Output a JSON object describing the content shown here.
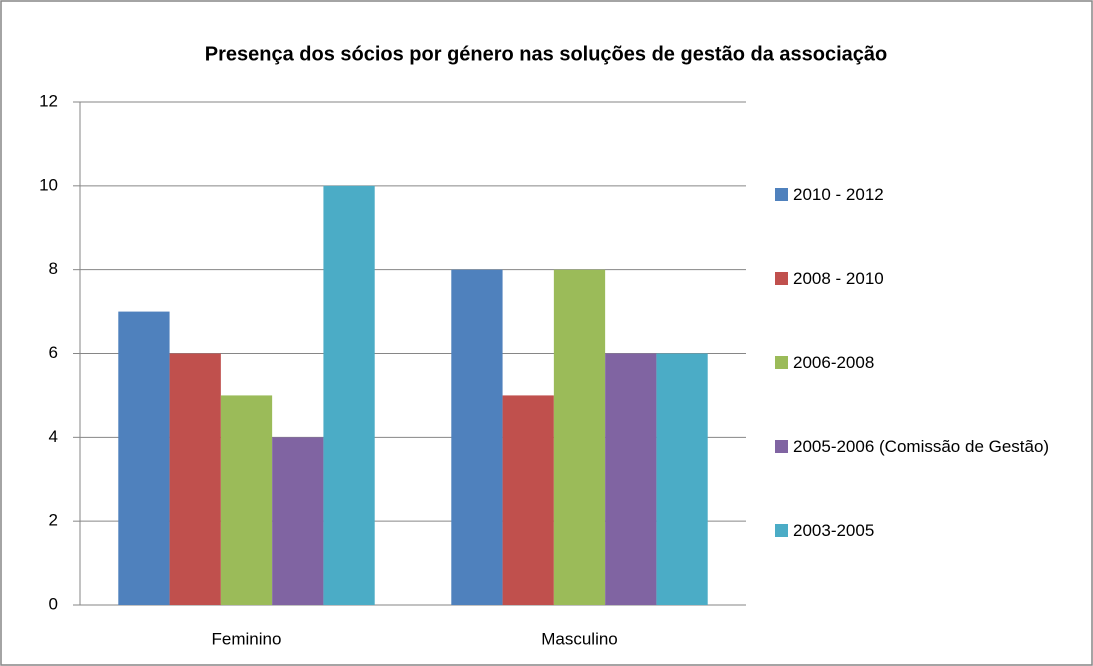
{
  "chart_data": {
    "type": "bar",
    "title": "Presença dos sócios por género nas soluções de gestão da associação",
    "categories": [
      "Feminino",
      "Masculino"
    ],
    "series": [
      {
        "name": "2010 - 2012",
        "color": "#4f81bd",
        "values": [
          7,
          8
        ]
      },
      {
        "name": "2008 - 2010",
        "color": "#c0504d",
        "values": [
          6,
          5
        ]
      },
      {
        "name": "2006-2008",
        "color": "#9bbb59",
        "values": [
          5,
          8
        ]
      },
      {
        "name": "2005-2006 (Comissão de Gestão)",
        "color": "#8064a2",
        "values": [
          4,
          6
        ]
      },
      {
        "name": "2003-2005",
        "color": "#4bacc6",
        "values": [
          10,
          6
        ]
      }
    ],
    "ylim": [
      0,
      12
    ],
    "yticks": [
      0,
      2,
      4,
      6,
      8,
      10,
      12
    ],
    "grid": true,
    "legend": "right"
  }
}
